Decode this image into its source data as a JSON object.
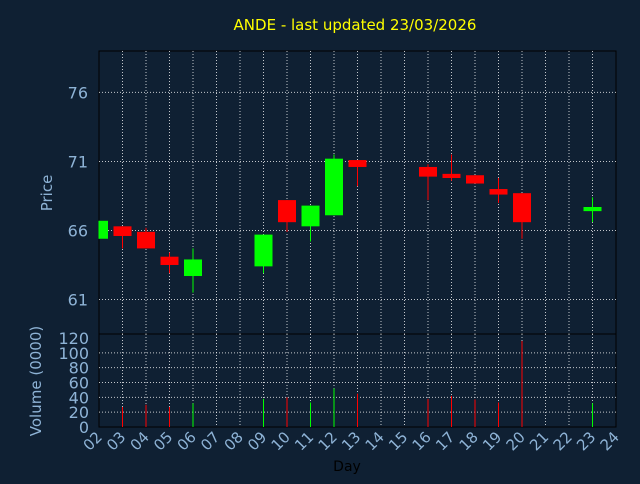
{
  "colors": {
    "background": "#0f2033",
    "title": "#ffff00",
    "axis_text": "#8eb3d6",
    "frame": "#000000",
    "grid": "#ffffff",
    "up": "#00ff00",
    "down": "#ff0000"
  },
  "chart_data": {
    "type": "candlestick",
    "title": "ANDE - last updated 23/03/2026",
    "xlabel": "Day",
    "ylabel": "Price",
    "volume_label": "Volume (0000)",
    "x_ticks": [
      "02",
      "03",
      "04",
      "05",
      "06",
      "07",
      "08",
      "09",
      "10",
      "11",
      "12",
      "13",
      "14",
      "15",
      "16",
      "17",
      "18",
      "19",
      "20",
      "21",
      "22",
      "23",
      "24"
    ],
    "price_ticks": [
      61,
      66,
      71,
      76
    ],
    "price_range": [
      58.5,
      79
    ],
    "volume_ticks": [
      0,
      20,
      40,
      60,
      80,
      100,
      120
    ],
    "volume_range": [
      0,
      120
    ],
    "grid": true,
    "candles": [
      {
        "day": "02",
        "open": 65.4,
        "close": 66.7,
        "high": 66.7,
        "low": 65.4,
        "volume": 0
      },
      {
        "day": "03",
        "open": 66.3,
        "close": 65.6,
        "high": 66.3,
        "low": 64.7,
        "volume": 27
      },
      {
        "day": "04",
        "open": 65.9,
        "close": 64.7,
        "high": 66.2,
        "low": 64.7,
        "volume": 30
      },
      {
        "day": "05",
        "open": 64.1,
        "close": 63.5,
        "high": 64.4,
        "low": 62.9,
        "volume": 27
      },
      {
        "day": "06",
        "open": 62.7,
        "close": 63.9,
        "high": 64.7,
        "low": 61.5,
        "volume": 32
      },
      {
        "day": "09",
        "open": 63.4,
        "close": 65.7,
        "high": 65.7,
        "low": 62.9,
        "volume": 38
      },
      {
        "day": "10",
        "open": 68.2,
        "close": 66.6,
        "high": 68.2,
        "low": 65.9,
        "volume": 40
      },
      {
        "day": "11",
        "open": 66.3,
        "close": 67.8,
        "high": 67.8,
        "low": 65.2,
        "volume": 33
      },
      {
        "day": "12",
        "open": 67.1,
        "close": 71.2,
        "high": 71.5,
        "low": 67.1,
        "volume": 52
      },
      {
        "day": "13",
        "open": 71.1,
        "close": 70.6,
        "high": 71.1,
        "low": 69.2,
        "volume": 45
      },
      {
        "day": "16",
        "open": 70.6,
        "close": 69.9,
        "high": 70.8,
        "low": 68.2,
        "volume": 38
      },
      {
        "day": "17",
        "open": 70.1,
        "close": 69.8,
        "high": 71.5,
        "low": 69.6,
        "volume": 42
      },
      {
        "day": "18",
        "open": 70.0,
        "close": 69.4,
        "high": 70.0,
        "low": 69.4,
        "volume": 37
      },
      {
        "day": "19",
        "open": 69.0,
        "close": 68.6,
        "high": 69.8,
        "low": 68.0,
        "volume": 33
      },
      {
        "day": "20",
        "open": 68.7,
        "close": 66.6,
        "high": 68.7,
        "low": 65.4,
        "volume": 116
      },
      {
        "day": "23",
        "open": 67.4,
        "close": 67.7,
        "high": 68.4,
        "low": 66.6,
        "volume": 32
      }
    ]
  }
}
